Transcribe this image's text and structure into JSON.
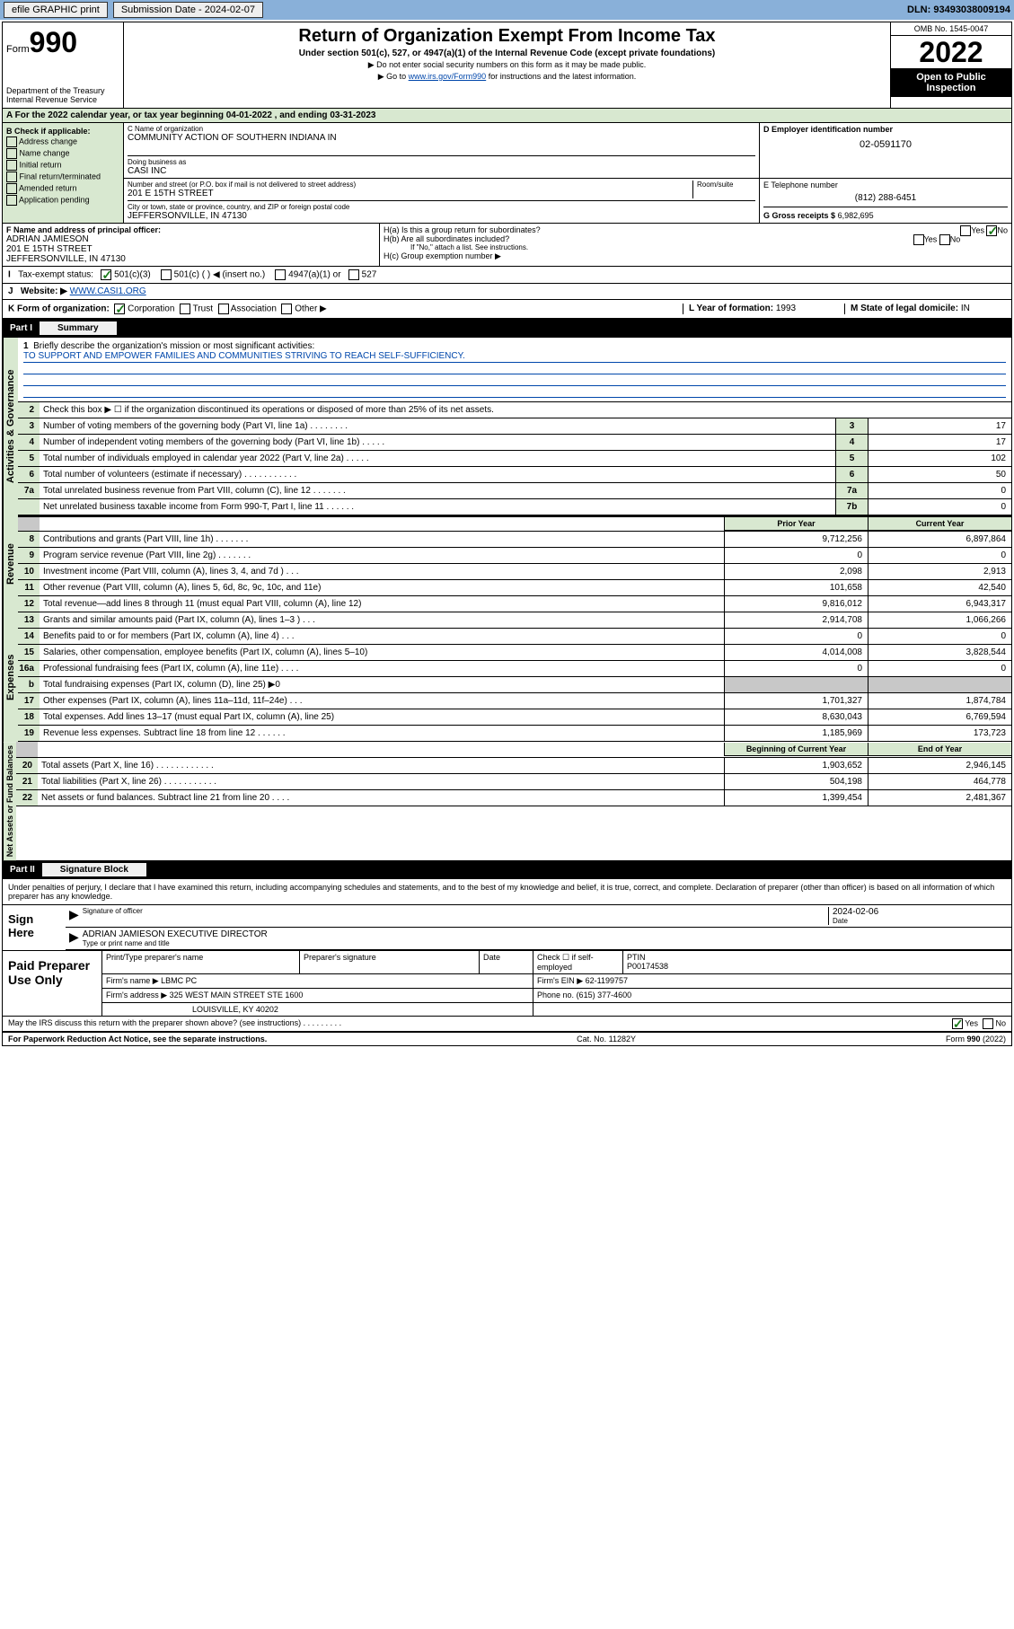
{
  "topbar": {
    "efile_label": "efile GRAPHIC print",
    "submission_label": "Submission Date - 2024-02-07",
    "dln": "DLN: 93493038009194"
  },
  "header": {
    "form_label": "Form",
    "form_number": "990",
    "dept": "Department of the Treasury",
    "irs": "Internal Revenue Service",
    "title": "Return of Organization Exempt From Income Tax",
    "subtitle": "Under section 501(c), 527, or 4947(a)(1) of the Internal Revenue Code (except private foundations)",
    "note1": "▶ Do not enter social security numbers on this form as it may be made public.",
    "note2_pre": "▶ Go to ",
    "note2_link": "www.irs.gov/Form990",
    "note2_post": " for instructions and the latest information.",
    "omb": "OMB No. 1545-0047",
    "year": "2022",
    "inspection": "Open to Public Inspection"
  },
  "row_a": {
    "text": "A For the 2022 calendar year, or tax year beginning 04-01-2022    , and ending 03-31-2023"
  },
  "section_b": {
    "header": "B Check if applicable:",
    "items": [
      "Address change",
      "Name change",
      "Initial return",
      "Final return/terminated",
      "Amended return",
      "Application pending"
    ]
  },
  "section_c": {
    "name_label": "C Name of organization",
    "name": "COMMUNITY ACTION OF SOUTHERN INDIANA IN",
    "dba_label": "Doing business as",
    "dba": "CASI INC",
    "addr_label": "Number and street (or P.O. box if mail is not delivered to street address)",
    "room_label": "Room/suite",
    "addr": "201 E 15TH STREET",
    "city_label": "City or town, state or province, country, and ZIP or foreign postal code",
    "city": "JEFFERSONVILLE, IN  47130"
  },
  "section_d": {
    "label": "D Employer identification number",
    "value": "02-0591170"
  },
  "section_e": {
    "label": "E Telephone number",
    "value": "(812) 288-6451"
  },
  "section_g": {
    "label": "G Gross receipts $",
    "value": "6,982,695"
  },
  "section_f": {
    "label": "F Name and address of principal officer:",
    "name": "ADRIAN JAMIESON",
    "addr1": "201 E 15TH STREET",
    "addr2": "JEFFERSONVILLE, IN  47130"
  },
  "section_h": {
    "ha_label": "H(a)  Is this a group return for subordinates?",
    "ha_yes": "Yes",
    "ha_no": "No",
    "hb_label": "H(b)  Are all subordinates included?",
    "hb_note": "If \"No,\" attach a list. See instructions.",
    "hc_label": "H(c)  Group exemption number ▶"
  },
  "tax_status": {
    "label": "Tax-exempt status:",
    "opt1": "501(c)(3)",
    "opt2": "501(c) (  ) ◀ (insert no.)",
    "opt3": "4947(a)(1) or",
    "opt4": "527"
  },
  "website": {
    "label": "Website: ▶",
    "value": "WWW.CASI1.ORG"
  },
  "row_k": {
    "k_label": "K Form of organization:",
    "k_corp": "Corporation",
    "k_trust": "Trust",
    "k_assoc": "Association",
    "k_other": "Other ▶",
    "l_label": "L Year of formation: ",
    "l_val": "1993",
    "m_label": "M State of legal domicile: ",
    "m_val": "IN"
  },
  "part1": {
    "num": "Part I",
    "title": "Summary",
    "q1_label": "Briefly describe the organization's mission or most significant activities:",
    "q1_text": "TO SUPPORT AND EMPOWER FAMILIES AND COMMUNITIES STRIVING TO REACH SELF-SUFFICIENCY.",
    "q2_text": "Check this box ▶ ☐  if the organization discontinued its operations or disposed of more than 25% of its net assets.",
    "vert_labels": {
      "gov": "Activities & Governance",
      "rev": "Revenue",
      "exp": "Expenses",
      "net": "Net Assets or Fund Balances"
    },
    "rows_gov": [
      {
        "n": "3",
        "d": "Number of voting members of the governing body (Part VI, line 1a)   .    .    .    .    .    .    .    .",
        "b": "3",
        "v": "17"
      },
      {
        "n": "4",
        "d": "Number of independent voting members of the governing body (Part VI, line 1b)  .    .    .    .    .",
        "b": "4",
        "v": "17"
      },
      {
        "n": "5",
        "d": "Total number of individuals employed in calendar year 2022 (Part V, line 2a)   .    .    .    .    .",
        "b": "5",
        "v": "102"
      },
      {
        "n": "6",
        "d": "Total number of volunteers (estimate if necessary)   .    .    .    .    .    .    .    .    .    .    .",
        "b": "6",
        "v": "50"
      },
      {
        "n": "7a",
        "d": "Total unrelated business revenue from Part VIII, column (C), line 12  .    .    .    .    .    .    .",
        "b": "7a",
        "v": "0"
      },
      {
        "n": "",
        "d": "Net unrelated business taxable income from Form 990-T, Part I, line 11   .    .    .    .    .    .",
        "b": "7b",
        "v": "0"
      }
    ],
    "col_hdrs": {
      "prior": "Prior Year",
      "current": "Current Year",
      "begin": "Beginning of Current Year",
      "end": "End of Year"
    },
    "rows_rev": [
      {
        "n": "8",
        "d": "Contributions and grants (Part VIII, line 1h)    .    .    .    .    .    .    .",
        "p": "9,712,256",
        "c": "6,897,864"
      },
      {
        "n": "9",
        "d": "Program service revenue (Part VIII, line 2g)   .    .    .    .    .    .    .",
        "p": "0",
        "c": "0"
      },
      {
        "n": "10",
        "d": "Investment income (Part VIII, column (A), lines 3, 4, and 7d )   .    .    .",
        "p": "2,098",
        "c": "2,913"
      },
      {
        "n": "11",
        "d": "Other revenue (Part VIII, column (A), lines 5, 6d, 8c, 9c, 10c, and 11e)",
        "p": "101,658",
        "c": "42,540"
      },
      {
        "n": "12",
        "d": "Total revenue—add lines 8 through 11 (must equal Part VIII, column (A), line 12)",
        "p": "9,816,012",
        "c": "6,943,317"
      }
    ],
    "rows_exp": [
      {
        "n": "13",
        "d": "Grants and similar amounts paid (Part IX, column (A), lines 1–3 )   .    .    .",
        "p": "2,914,708",
        "c": "1,066,266"
      },
      {
        "n": "14",
        "d": "Benefits paid to or for members (Part IX, column (A), line 4)   .    .    .",
        "p": "0",
        "c": "0"
      },
      {
        "n": "15",
        "d": "Salaries, other compensation, employee benefits (Part IX, column (A), lines 5–10)",
        "p": "4,014,008",
        "c": "3,828,544"
      },
      {
        "n": "16a",
        "d": "Professional fundraising fees (Part IX, column (A), line 11e)   .    .    .    .",
        "p": "0",
        "c": "0"
      },
      {
        "n": "b",
        "d": "Total fundraising expenses (Part IX, column (D), line 25) ▶0",
        "p": "",
        "c": "",
        "gray": true
      },
      {
        "n": "17",
        "d": "Other expenses (Part IX, column (A), lines 11a–11d, 11f–24e)  .    .    .",
        "p": "1,701,327",
        "c": "1,874,784"
      },
      {
        "n": "18",
        "d": "Total expenses. Add lines 13–17 (must equal Part IX, column (A), line 25)",
        "p": "8,630,043",
        "c": "6,769,594"
      },
      {
        "n": "19",
        "d": "Revenue less expenses. Subtract line 18 from line 12  .    .    .    .    .    .",
        "p": "1,185,969",
        "c": "173,723"
      }
    ],
    "rows_net": [
      {
        "n": "20",
        "d": "Total assets (Part X, line 16)  .    .    .    .    .    .    .    .    .    .    .    .",
        "p": "1,903,652",
        "c": "2,946,145"
      },
      {
        "n": "21",
        "d": "Total liabilities (Part X, line 26)  .    .    .    .    .    .    .    .    .    .    .",
        "p": "504,198",
        "c": "464,778"
      },
      {
        "n": "22",
        "d": "Net assets or fund balances. Subtract line 21 from line 20  .    .    .    .",
        "p": "1,399,454",
        "c": "2,481,367"
      }
    ]
  },
  "part2": {
    "num": "Part II",
    "title": "Signature Block"
  },
  "sig": {
    "intro": "Under penalties of perjury, I declare that I have examined this return, including accompanying schedules and statements, and to the best of my knowledge and belief, it is true, correct, and complete. Declaration of preparer (other than officer) is based on all information of which preparer has any knowledge.",
    "sign_here": "Sign Here",
    "sig_officer_lbl": "Signature of officer",
    "date_lbl": "Date",
    "date_val": "2024-02-06",
    "name_title": "ADRIAN JAMIESON  EXECUTIVE DIRECTOR",
    "name_title_lbl": "Type or print name and title"
  },
  "preparer": {
    "title": "Paid Preparer Use Only",
    "print_name_lbl": "Print/Type preparer's name",
    "prep_sig_lbl": "Preparer's signature",
    "date_lbl": "Date",
    "check_lbl": "Check ☐ if self-employed",
    "ptin_lbl": "PTIN",
    "ptin": "P00174538",
    "firm_name_lbl": "Firm's name    ▶",
    "firm_name": "LBMC PC",
    "firm_ein_lbl": "Firm's EIN ▶",
    "firm_ein": "62-1199757",
    "firm_addr_lbl": "Firm's address ▶",
    "firm_addr1": "325 WEST MAIN STREET STE 1600",
    "firm_addr2": "LOUISVILLE, KY  40202",
    "phone_lbl": "Phone no.",
    "phone": "(615) 377-4600"
  },
  "footer": {
    "discuss": "May the IRS discuss this return with the preparer shown above? (see instructions)   .    .    .    .    .    .    .    .    .",
    "yes": "Yes",
    "no": "No",
    "paperwork": "For Paperwork Reduction Act Notice, see the separate instructions.",
    "cat": "Cat. No. 11282Y",
    "form": "Form 990 (2022)"
  }
}
